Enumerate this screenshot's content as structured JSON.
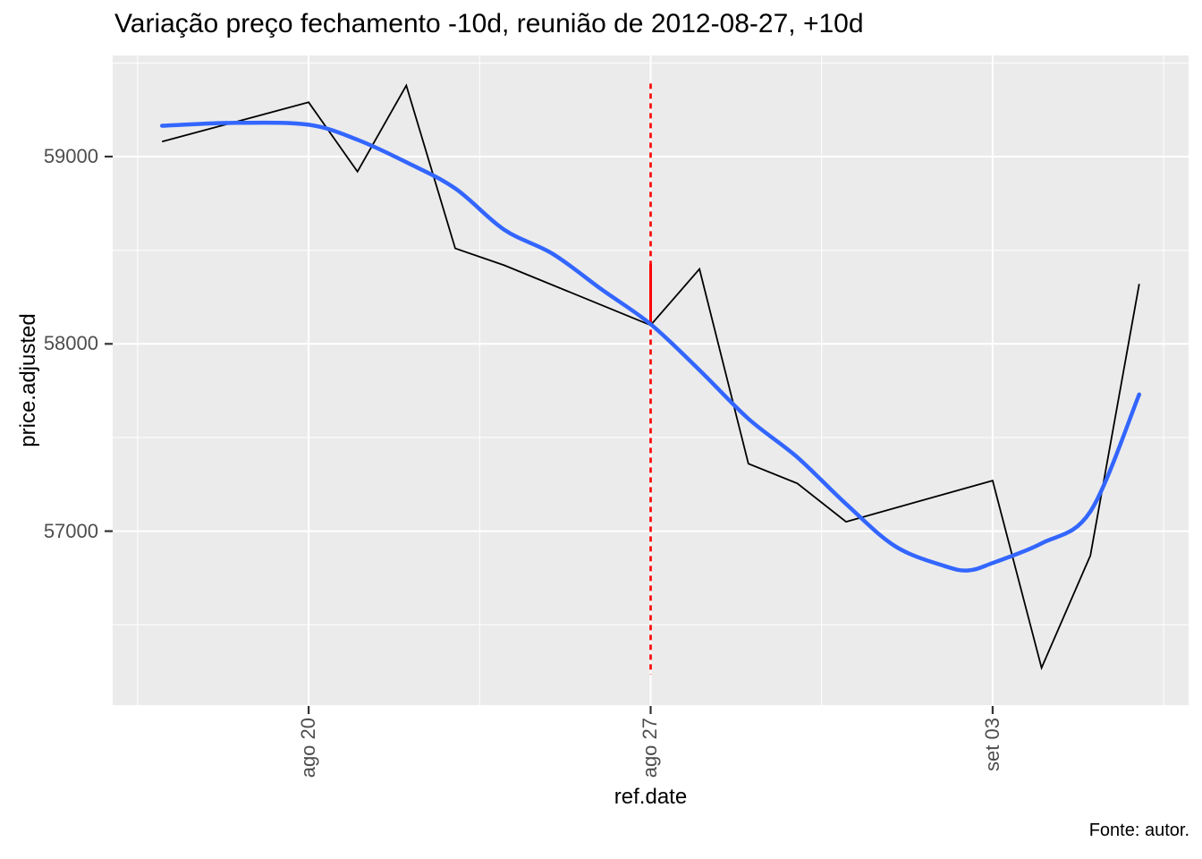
{
  "title": "Variação preço fechamento -10d, reunião de 2012-08-27, +10d",
  "caption": "Fonte: autor.",
  "colors": {
    "page_bg": "#FFFFFF",
    "panel_bg": "#EBEBEB",
    "grid": "#FFFFFF",
    "tick_mark": "#333333",
    "tick_label": "#4D4D4D",
    "price_line": "#000000",
    "smooth_line": "#3366FF",
    "event_line": "#FF0000"
  },
  "chart_data": {
    "type": "line",
    "title": "Variação preço fechamento -10d, reunião de 2012-08-27, +10d",
    "xlabel": "ref.date",
    "ylabel": "price.adjusted",
    "caption": "Fonte: autor.",
    "grid": true,
    "legend": "none",
    "x_unit": "days relative to 2012-08-20",
    "xlim_days": [
      -4.01,
      18.01
    ],
    "ylim": [
      56071,
      59540
    ],
    "x_major_ticks": [
      {
        "day": 0,
        "label": "ago 20",
        "date": "2012-08-20"
      },
      {
        "day": 7,
        "label": "ago 27",
        "date": "2012-08-27"
      },
      {
        "day": 14,
        "label": "set 03",
        "date": "2012-09-03"
      }
    ],
    "x_minor_days": [
      -3.5,
      3.5,
      10.5,
      17.5
    ],
    "y_major_ticks": [
      {
        "value": 59000,
        "label": "59000"
      },
      {
        "value": 58000,
        "label": "58000"
      },
      {
        "value": 57000,
        "label": "57000"
      }
    ],
    "y_minor_values": [
      59500,
      58500,
      57500,
      56500
    ],
    "event_line": {
      "date": "2012-08-27",
      "day": 7,
      "color": "#FF0000",
      "dashed_range": [
        56235,
        59390
      ],
      "solid_segment": [
        58105,
        58425
      ]
    },
    "series": [
      {
        "name": "price.adjusted",
        "style": "line",
        "color": "#000000",
        "width": 1.8,
        "points": [
          {
            "date": "2012-08-17",
            "day": -3,
            "value": 59080
          },
          {
            "date": "2012-08-20",
            "day": 0,
            "value": 59290
          },
          {
            "date": "2012-08-21",
            "day": 1,
            "value": 58920
          },
          {
            "date": "2012-08-22",
            "day": 2,
            "value": 59380
          },
          {
            "date": "2012-08-23",
            "day": 3,
            "value": 58510
          },
          {
            "date": "2012-08-24",
            "day": 4,
            "value": 58420
          },
          {
            "date": "2012-08-27",
            "day": 7,
            "value": 58100
          },
          {
            "date": "2012-08-28",
            "day": 8,
            "value": 58400
          },
          {
            "date": "2012-08-29",
            "day": 9,
            "value": 57360
          },
          {
            "date": "2012-08-30",
            "day": 10,
            "value": 57255
          },
          {
            "date": "2012-08-31",
            "day": 11,
            "value": 57050
          },
          {
            "date": "2012-09-03",
            "day": 14,
            "value": 57270
          },
          {
            "date": "2012-09-04",
            "day": 15,
            "value": 56270
          },
          {
            "date": "2012-09-05",
            "day": 16,
            "value": 56870
          },
          {
            "date": "2012-09-06",
            "day": 17,
            "value": 58320
          }
        ]
      },
      {
        "name": "loess-smooth",
        "style": "smooth",
        "color": "#3366FF",
        "width": 4.5,
        "points": [
          {
            "day": -3,
            "value": 59165
          },
          {
            "day": -1.5,
            "value": 59180
          },
          {
            "day": 0,
            "value": 59170
          },
          {
            "day": 1,
            "value": 59090
          },
          {
            "day": 2,
            "value": 58970
          },
          {
            "day": 3,
            "value": 58830
          },
          {
            "day": 4,
            "value": 58610
          },
          {
            "day": 5,
            "value": 58480
          },
          {
            "day": 6,
            "value": 58290
          },
          {
            "day": 7,
            "value": 58105
          },
          {
            "day": 8,
            "value": 57860
          },
          {
            "day": 9,
            "value": 57600
          },
          {
            "day": 10,
            "value": 57395
          },
          {
            "day": 11,
            "value": 57145
          },
          {
            "day": 12,
            "value": 56920
          },
          {
            "day": 13,
            "value": 56815
          },
          {
            "day": 13.5,
            "value": 56790
          },
          {
            "day": 14,
            "value": 56830
          },
          {
            "day": 15,
            "value": 56935
          },
          {
            "day": 16,
            "value": 57105
          },
          {
            "day": 17,
            "value": 57730
          }
        ]
      }
    ]
  }
}
